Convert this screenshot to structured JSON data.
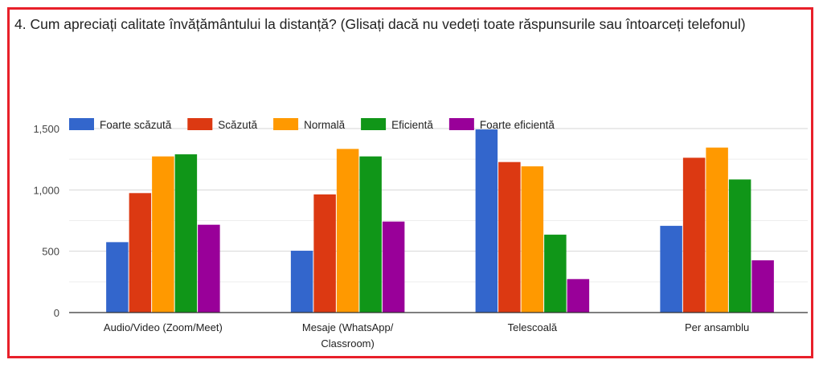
{
  "question": "4. Cum apreciați calitate învățământului la distanță? (Glisați dacă nu vedeți toate răspunsurile sau întoarceți telefonul)",
  "chart_data": {
    "type": "bar",
    "title": "",
    "xlabel": "",
    "ylabel": "",
    "categories": [
      "Audio/Video (Zoom/Meet)",
      "Mesaje (WhatsApp/\nClassroom)",
      "Telescoală",
      "Per ansamblu"
    ],
    "ylim": [
      0,
      1500
    ],
    "yticks": [
      0,
      500,
      1000,
      1500
    ],
    "ytick_labels": [
      "0",
      "500",
      "1,000",
      "1,500"
    ],
    "grid": true,
    "legend_position": "top",
    "series": [
      {
        "name": "Foarte scăzută",
        "color": "#3366cc",
        "values": [
          574,
          504,
          1493,
          707
        ]
      },
      {
        "name": "Scăzută",
        "color": "#dc3912",
        "values": [
          974,
          963,
          1227,
          1262
        ]
      },
      {
        "name": "Normală",
        "color": "#ff9900",
        "values": [
          1273,
          1334,
          1192,
          1345
        ]
      },
      {
        "name": "Eficientă",
        "color": "#109618",
        "values": [
          1290,
          1273,
          635,
          1085
        ]
      },
      {
        "name": "Foarte eficientă",
        "color": "#990099",
        "values": [
          716,
          742,
          273,
          426
        ]
      }
    ]
  }
}
